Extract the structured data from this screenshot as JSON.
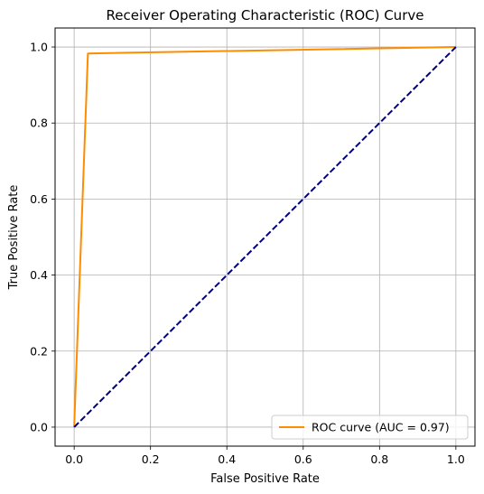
{
  "chart_data": {
    "type": "line",
    "title": "Receiver Operating Characteristic (ROC) Curve",
    "xlabel": "False Positive Rate",
    "ylabel": "True Positive Rate",
    "xlim": [
      -0.05,
      1.05
    ],
    "ylim": [
      -0.05,
      1.05
    ],
    "xticks": [
      0.0,
      0.2,
      0.4,
      0.6,
      0.8,
      1.0
    ],
    "yticks": [
      0.0,
      0.2,
      0.4,
      0.6,
      0.8,
      1.0
    ],
    "xtick_labels": [
      "0.0",
      "0.2",
      "0.4",
      "0.6",
      "0.8",
      "1.0"
    ],
    "ytick_labels": [
      "0.0",
      "0.2",
      "0.4",
      "0.6",
      "0.8",
      "1.0"
    ],
    "grid": true,
    "legend_position": "lower right",
    "series": [
      {
        "name": "ROC curve (AUC = 0.97)",
        "color": "#ff8c00",
        "style": "solid",
        "x": [
          0.0,
          0.036,
          1.0
        ],
        "y": [
          0.0,
          0.983,
          1.0
        ]
      },
      {
        "color": "#000080",
        "style": "dashed",
        "x": [
          0.0,
          1.0
        ],
        "y": [
          0.0,
          1.0
        ]
      }
    ]
  }
}
